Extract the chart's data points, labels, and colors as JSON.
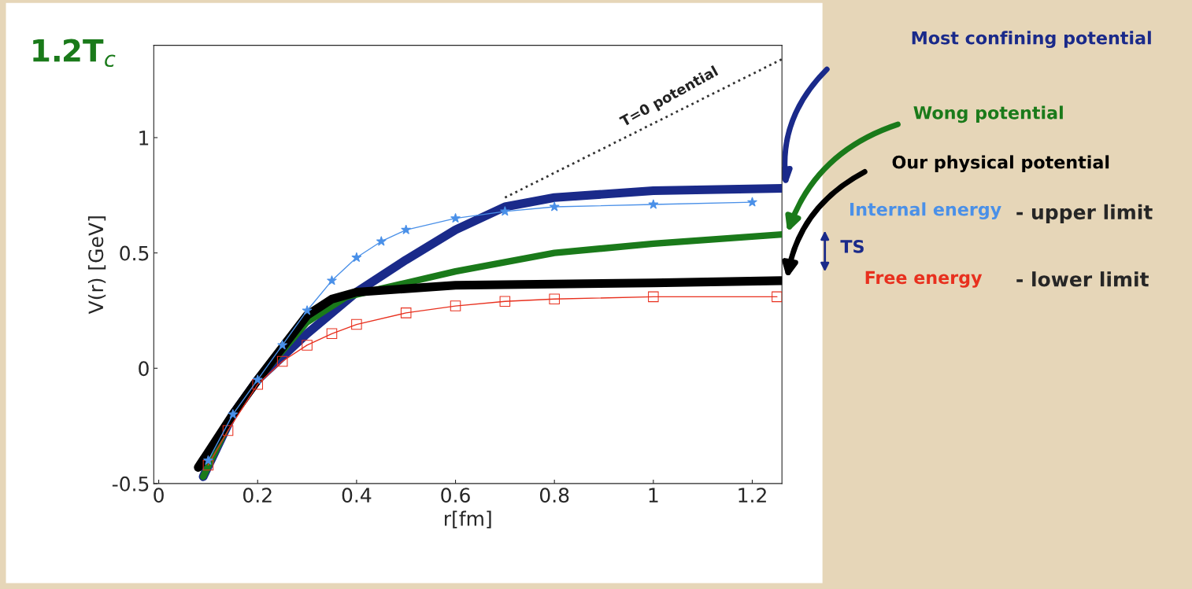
{
  "chart_data": {
    "type": "line",
    "title": "1.2T$_{c}$",
    "xlabel": "r[fm]",
    "ylabel": "V(r) [GeV]",
    "xlim": [
      -0.01,
      1.26
    ],
    "ylim": [
      -0.5,
      1.4
    ],
    "xticks": [
      0,
      0.2,
      0.4,
      0.6,
      0.8,
      1,
      1.2
    ],
    "yticks": [
      -0.5,
      0,
      0.5,
      1
    ],
    "series": [
      {
        "name": "T=0 potential",
        "color": "#333333",
        "line_style": "dotted",
        "marker": "none",
        "x": [
          0.7,
          1.26
        ],
        "values": [
          0.74,
          1.34
        ]
      },
      {
        "name": "Internal energy",
        "color": "#4a90e8",
        "line_style": "solid",
        "marker": "star",
        "x": [
          0.1,
          0.15,
          0.2,
          0.25,
          0.3,
          0.35,
          0.4,
          0.45,
          0.5,
          0.6,
          0.7,
          0.8,
          1.0,
          1.2
        ],
        "values": [
          -0.4,
          -0.2,
          -0.05,
          0.1,
          0.25,
          0.38,
          0.48,
          0.55,
          0.6,
          0.65,
          0.68,
          0.7,
          0.71,
          0.72
        ]
      },
      {
        "name": "Free energy",
        "color": "#e8301e",
        "line_style": "solid",
        "marker": "square",
        "x": [
          0.1,
          0.14,
          0.2,
          0.25,
          0.3,
          0.35,
          0.4,
          0.5,
          0.6,
          0.7,
          0.8,
          1.0,
          1.25
        ],
        "values": [
          -0.42,
          -0.27,
          -0.07,
          0.03,
          0.1,
          0.15,
          0.19,
          0.24,
          0.27,
          0.29,
          0.3,
          0.31,
          0.31
        ]
      },
      {
        "name": "Most confining potential",
        "color": "#1a2a8a",
        "line_style": "solid",
        "marker": "none",
        "x": [
          0.09,
          0.15,
          0.2,
          0.3,
          0.4,
          0.5,
          0.6,
          0.7,
          0.8,
          1.0,
          1.26
        ],
        "values": [
          -0.47,
          -0.2,
          -0.05,
          0.15,
          0.33,
          0.47,
          0.6,
          0.7,
          0.74,
          0.77,
          0.78
        ]
      },
      {
        "name": "Wong potential",
        "color": "#1a7a1a",
        "line_style": "solid",
        "marker": "none",
        "x": [
          0.09,
          0.15,
          0.2,
          0.3,
          0.38,
          0.5,
          0.6,
          0.8,
          1.0,
          1.26
        ],
        "values": [
          -0.47,
          -0.2,
          -0.05,
          0.2,
          0.31,
          0.37,
          0.42,
          0.5,
          0.54,
          0.58
        ]
      },
      {
        "name": "Our physical potential",
        "color": "#000000",
        "line_style": "solid",
        "marker": "none",
        "x": [
          0.08,
          0.15,
          0.2,
          0.3,
          0.35,
          0.4,
          0.6,
          1.0,
          1.26
        ],
        "values": [
          -0.43,
          -0.2,
          -0.05,
          0.23,
          0.3,
          0.33,
          0.36,
          0.37,
          0.38
        ]
      }
    ],
    "annotations": [
      "- upper limit",
      "- lower limit",
      "TS"
    ]
  }
}
